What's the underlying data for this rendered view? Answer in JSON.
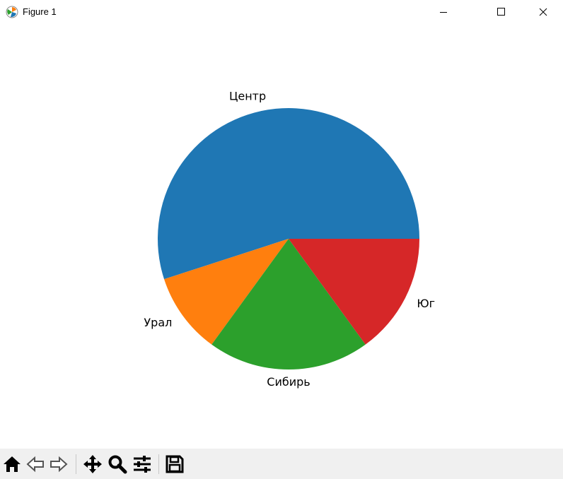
{
  "window": {
    "title": "Figure 1"
  },
  "toolbar": {
    "buttons": [
      "home-icon",
      "back-icon",
      "forward-icon",
      "pan-icon",
      "zoom-icon",
      "configure-subplots-icon",
      "save-icon"
    ]
  },
  "chart_data": {
    "type": "pie",
    "categories": [
      "Центр",
      "Урал",
      "Сибирь",
      "Юг"
    ],
    "values": [
      55,
      10,
      20,
      15
    ],
    "colors": [
      "#1f77b4",
      "#ff7f0e",
      "#2ca02c",
      "#d62728"
    ],
    "start_angle": 0,
    "direction": "counterclockwise"
  }
}
